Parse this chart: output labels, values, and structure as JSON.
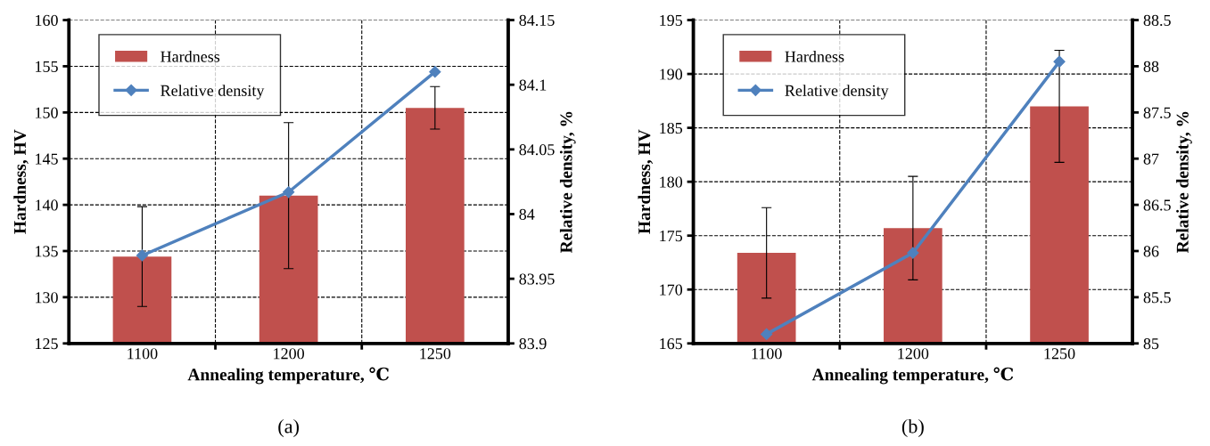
{
  "chart_data": [
    {
      "type": "bar",
      "categories": [
        "1100",
        "1200",
        "1250"
      ],
      "xlabel": "Annealing temperature, ℃",
      "ylabel": "Hardness, HV",
      "y2label": "Relative density, %",
      "series": [
        {
          "name": "Hardness",
          "color": "#c0504d",
          "values": [
            134.4,
            141.0,
            150.5
          ],
          "errors": [
            5.4,
            7.9,
            2.3
          ]
        },
        {
          "name": "Relative density",
          "type": "line",
          "axis": "y2",
          "color": "#4f81bd",
          "values": [
            83.968,
            84.017,
            84.11
          ]
        }
      ],
      "ylim": [
        125,
        160
      ],
      "yticks": [
        125,
        130,
        135,
        140,
        145,
        150,
        155,
        160
      ],
      "y2lim": [
        83.9,
        84.15
      ],
      "y2ticks": [
        83.9,
        83.95,
        84,
        84.05,
        84.1,
        84.15
      ],
      "grid": true,
      "legend": "top left",
      "marker": "diamond",
      "line_style": "solid",
      "annotations": [
        "(a)"
      ]
    },
    {
      "type": "bar",
      "categories": [
        "1100",
        "1200",
        "1250"
      ],
      "xlabel": "Annealing temperature, ℃",
      "ylabel": "Hardness, HV",
      "y2label": "Relative density, %",
      "series": [
        {
          "name": "Hardness",
          "color": "#c0504d",
          "values": [
            173.4,
            175.7,
            187.0
          ],
          "errors": [
            4.2,
            4.8,
            5.2
          ]
        },
        {
          "name": "Relative density",
          "type": "line",
          "axis": "y2",
          "color": "#4f81bd",
          "values": [
            85.1,
            85.98,
            88.05
          ]
        }
      ],
      "ylim": [
        165,
        195
      ],
      "yticks": [
        165,
        170,
        175,
        180,
        185,
        190,
        195
      ],
      "y2lim": [
        85,
        88.5
      ],
      "y2ticks": [
        85,
        85.5,
        86,
        86.5,
        87,
        87.5,
        88,
        88.5
      ],
      "grid": true,
      "legend": "top left",
      "marker": "diamond",
      "line_style": "solid",
      "annotations": [
        "(b)"
      ]
    }
  ]
}
